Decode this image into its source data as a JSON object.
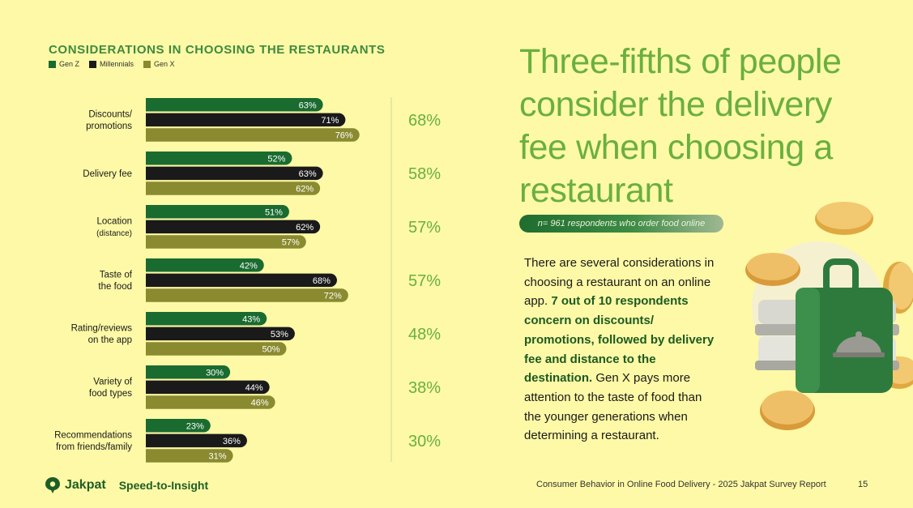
{
  "chart_data": {
    "type": "bar",
    "orientation": "horizontal",
    "title": "CONSIDERATIONS IN CHOOSING THE RESTAURANTS",
    "categories": [
      [
        "Discounts/",
        "promotions"
      ],
      [
        "Delivery fee"
      ],
      [
        "Location",
        "(distance)"
      ],
      [
        "Taste of",
        "the food"
      ],
      [
        "Rating/reviews",
        "on the app"
      ],
      [
        "Variety of",
        "food types"
      ],
      [
        "Recommendations",
        "from friends/family"
      ]
    ],
    "series": [
      {
        "name": "Gen Z",
        "color": "#1a6b30",
        "values": [
          63,
          52,
          51,
          42,
          43,
          30,
          23
        ]
      },
      {
        "name": "Millennials",
        "color": "#1a1a1a",
        "values": [
          71,
          63,
          62,
          68,
          53,
          44,
          36
        ]
      },
      {
        "name": "Gen X",
        "color": "#8a8a30",
        "values": [
          76,
          62,
          57,
          72,
          50,
          46,
          31
        ]
      }
    ],
    "totals": [
      68,
      58,
      57,
      57,
      48,
      38,
      30
    ],
    "value_suffix": "%",
    "legend_position": "top-left",
    "xlim": [
      0,
      100
    ]
  },
  "headline": "Three-fifths of people consider the delivery fee when choosing a restaurant",
  "sample_note": "n= 961 respondents who order food online",
  "body": {
    "p1": "There are several considerations in choosing a restaurant on an online app.",
    "bold": "7 out of 10 respondents concern on discounts/ promotions, followed by delivery fee and distance to the destination.",
    "p2": "Gen X pays more attention to the taste of food than the younger generations when determining a restaurant."
  },
  "footer": {
    "brand": "Jakpat",
    "tagline": "Speed-to-Insight",
    "report": "Consumer Behavior in Online Food Delivery - 2025 Jakpat Survey Report",
    "page": "15"
  },
  "icons": [
    "food-delivery-bag-icon",
    "coin-icon",
    "jakpat-logo-icon"
  ]
}
